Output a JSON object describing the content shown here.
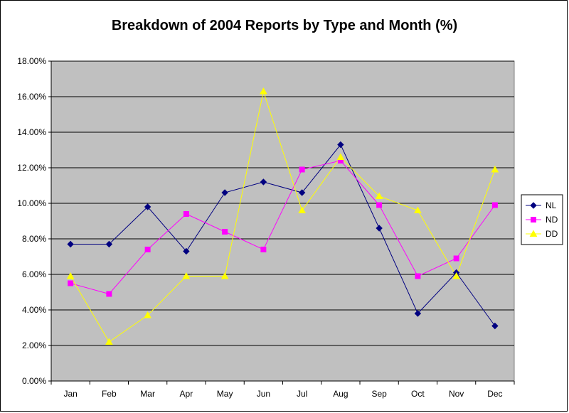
{
  "chart_data": {
    "type": "line",
    "title": "Breakdown of 2004 Reports by Type and Month (%)",
    "xlabel": "",
    "ylabel": "",
    "categories": [
      "Jan",
      "Feb",
      "Mar",
      "Apr",
      "May",
      "Jun",
      "Jul",
      "Aug",
      "Sep",
      "Oct",
      "Nov",
      "Dec"
    ],
    "yticks": [
      "0.00%",
      "2.00%",
      "4.00%",
      "6.00%",
      "8.00%",
      "10.00%",
      "12.00%",
      "14.00%",
      "16.00%",
      "18.00%"
    ],
    "ylim": [
      0,
      18
    ],
    "grid": true,
    "legend_position": "right",
    "plot_background": "#c0c0c0",
    "series": [
      {
        "name": "NL",
        "color": "#000080",
        "marker": "diamond",
        "values": [
          7.7,
          7.7,
          9.8,
          7.3,
          10.6,
          11.2,
          10.6,
          13.3,
          8.6,
          3.8,
          6.1,
          3.1
        ]
      },
      {
        "name": "ND",
        "color": "#ff00ff",
        "marker": "square",
        "values": [
          5.5,
          4.9,
          7.4,
          9.4,
          8.4,
          7.4,
          11.9,
          12.4,
          9.9,
          5.9,
          6.9,
          9.9
        ]
      },
      {
        "name": "DD",
        "color": "#ffff00",
        "marker": "triangle",
        "values": [
          5.9,
          2.2,
          3.7,
          5.9,
          5.9,
          16.3,
          9.6,
          12.6,
          10.4,
          9.6,
          5.9,
          11.9
        ]
      }
    ]
  }
}
